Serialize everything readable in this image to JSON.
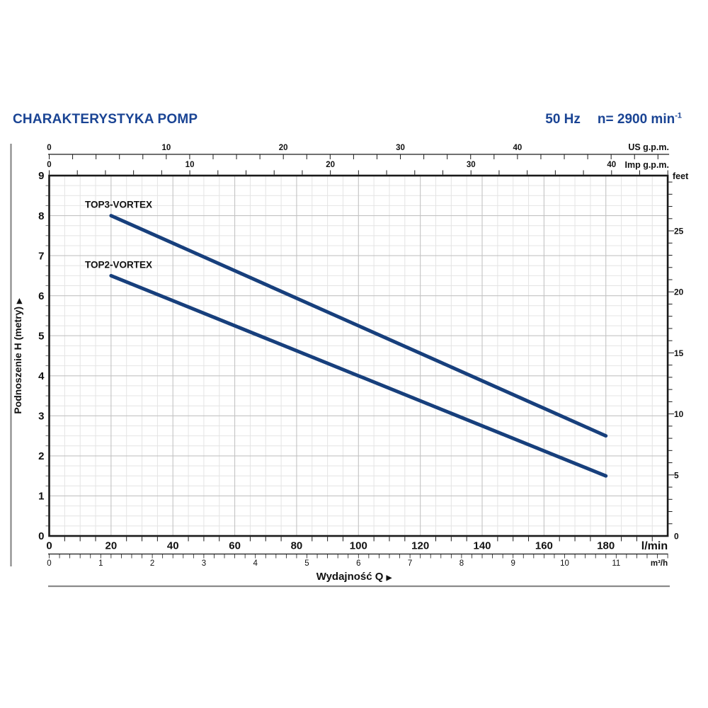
{
  "header": {
    "title": "CHARAKTERYSTYKA POMP",
    "frequency": "50 Hz",
    "speed_label": "n= 2900 min",
    "speed_exponent": "-1"
  },
  "icons": {
    "arrow_right": "▶"
  },
  "colors": {
    "brand_blue": "#1a4494",
    "curve_navy": "#173f7c",
    "grid_minor": "#e4e4e4",
    "grid_major": "#c3c3c3",
    "axis_black": "#1a1a1a",
    "rule_gray": "#8a8a8a"
  },
  "chart_data": {
    "type": "line",
    "title": "CHARAKTERYSTYKA POMP",
    "xlabel": "Wydajność Q",
    "ylabel": "Podnoszenie H (metry)",
    "x_range_lmin": [
      0,
      200
    ],
    "y_range_m": [
      0,
      9
    ],
    "grid": {
      "minor_x_lmin": 5,
      "major_x_lmin": 20,
      "minor_y_m": 0.25,
      "major_y_m": 1,
      "grid_on": true
    },
    "series": [
      {
        "name": "TOP3-VORTEX",
        "points": [
          {
            "q_lmin": 20,
            "h_m": 8.0
          },
          {
            "q_lmin": 180,
            "h_m": 2.5
          }
        ]
      },
      {
        "name": "TOP2-VORTEX",
        "points": [
          {
            "q_lmin": 20,
            "h_m": 6.5
          },
          {
            "q_lmin": 180,
            "h_m": 1.5
          }
        ]
      }
    ],
    "x_axes": [
      {
        "id": "us_gpm",
        "unit": "US g.p.m.",
        "lmin_per_unit": 3.7854,
        "tick_step": 2,
        "tick_max": 52,
        "label_step": 10,
        "label_max": 40
      },
      {
        "id": "imp_gpm",
        "unit": "Imp g.p.m.",
        "lmin_per_unit": 4.5461,
        "tick_step": 2,
        "tick_max": 44,
        "label_step": 10,
        "label_max": 40
      },
      {
        "id": "lmin",
        "unit": "l/min",
        "lmin_per_unit": 1,
        "tick_step": 5,
        "tick_max": 200,
        "label_step": 20,
        "label_max": 180
      },
      {
        "id": "m3h",
        "unit": "m³/h",
        "lmin_per_unit": 16.6667,
        "tick_step": 0.2,
        "tick_max": 12,
        "label_step": 1,
        "label_max": 11
      }
    ],
    "y_axes": [
      {
        "id": "metres",
        "unit": "",
        "m_per_unit": 1,
        "tick_step": 0.25,
        "tick_max": 9,
        "label_step": 1,
        "label_max": 9
      },
      {
        "id": "feet",
        "unit": "feet",
        "m_per_unit": 0.3048,
        "tick_step": 1,
        "tick_max": 29,
        "label_step": 5,
        "label_max": 25
      }
    ]
  }
}
